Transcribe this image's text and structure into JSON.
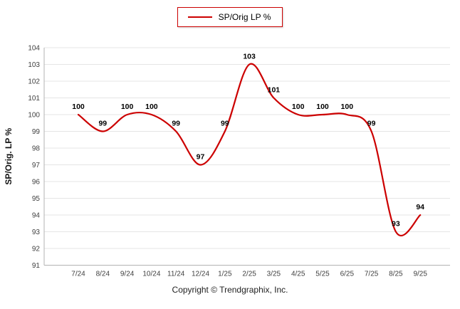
{
  "legend": {
    "position": "top-center"
  },
  "footer": {
    "copyright": "Copyright © Trendgraphix, Inc."
  },
  "colors": {
    "series": "#cc0000",
    "grid": "#e5e5e5",
    "axis": "#b3b3b3",
    "tick_text": "#404040",
    "data_label": "#000000",
    "ylabel_text": "#111111"
  },
  "chart_data": {
    "type": "line",
    "title": "",
    "xlabel": "",
    "ylabel": "SP/Orig. LP %",
    "categories": [
      "7/24",
      "8/24",
      "9/24",
      "10/24",
      "11/24",
      "12/24",
      "1/25",
      "2/25",
      "3/25",
      "4/25",
      "5/25",
      "6/25",
      "7/25",
      "8/25",
      "9/25"
    ],
    "series": [
      {
        "name": "SP/Orig LP %",
        "values": [
          100,
          99,
          100,
          100,
          99,
          97,
          99,
          103,
          101,
          100,
          100,
          100,
          99,
          93,
          94
        ]
      }
    ],
    "ylim": [
      91,
      104
    ],
    "ytick_step": 1,
    "grid": true,
    "line_style": "smooth",
    "data_labels": true,
    "legend_position": "top-center"
  }
}
